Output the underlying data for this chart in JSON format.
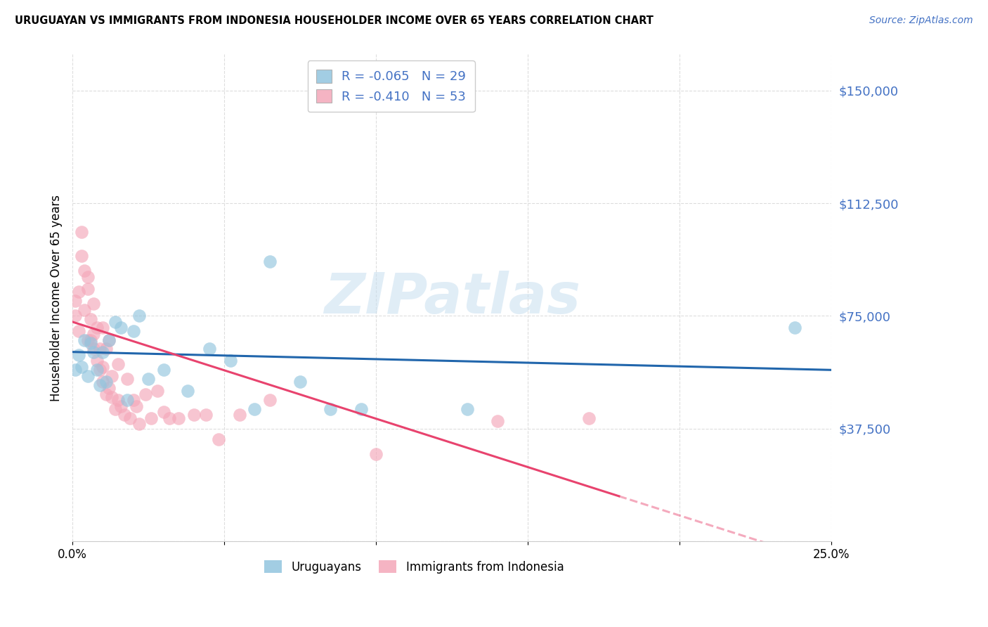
{
  "title": "URUGUAYAN VS IMMIGRANTS FROM INDONESIA HOUSEHOLDER INCOME OVER 65 YEARS CORRELATION CHART",
  "source": "Source: ZipAtlas.com",
  "ylabel": "Householder Income Over 65 years",
  "legend_uruguayan": "Uruguayans",
  "legend_indonesia": "Immigrants from Indonesia",
  "r_uruguayan": "-0.065",
  "n_uruguayan": "29",
  "r_indonesia": "-0.410",
  "n_indonesia": "53",
  "y_ticks": [
    0,
    37500,
    75000,
    112500,
    150000
  ],
  "y_tick_labels": [
    "",
    "$37,500",
    "$75,000",
    "$112,500",
    "$150,000"
  ],
  "xlim": [
    0.0,
    0.25
  ],
  "ylim": [
    0,
    162000
  ],
  "watermark": "ZIPatlas",
  "blue_color": "#92c5de",
  "pink_color": "#f4a7b9",
  "blue_line_color": "#2166ac",
  "pink_line_color": "#e8436e",
  "uruguayan_x": [
    0.001,
    0.002,
    0.003,
    0.004,
    0.005,
    0.006,
    0.007,
    0.008,
    0.009,
    0.01,
    0.011,
    0.012,
    0.014,
    0.016,
    0.018,
    0.02,
    0.022,
    0.025,
    0.03,
    0.038,
    0.045,
    0.052,
    0.06,
    0.065,
    0.075,
    0.085,
    0.095,
    0.13,
    0.238
  ],
  "uruguayan_y": [
    57000,
    62000,
    58000,
    67000,
    55000,
    66000,
    63000,
    57000,
    52000,
    63000,
    53000,
    67000,
    73000,
    71000,
    47000,
    70000,
    75000,
    54000,
    57000,
    50000,
    64000,
    60000,
    44000,
    93000,
    53000,
    44000,
    44000,
    44000,
    71000
  ],
  "indonesia_x": [
    0.001,
    0.001,
    0.002,
    0.002,
    0.003,
    0.003,
    0.004,
    0.004,
    0.005,
    0.005,
    0.005,
    0.006,
    0.006,
    0.007,
    0.007,
    0.007,
    0.008,
    0.008,
    0.009,
    0.009,
    0.01,
    0.01,
    0.01,
    0.011,
    0.011,
    0.012,
    0.012,
    0.013,
    0.013,
    0.014,
    0.015,
    0.015,
    0.016,
    0.017,
    0.018,
    0.019,
    0.02,
    0.021,
    0.022,
    0.024,
    0.026,
    0.028,
    0.03,
    0.032,
    0.035,
    0.04,
    0.044,
    0.048,
    0.055,
    0.065,
    0.1,
    0.14,
    0.17
  ],
  "indonesia_y": [
    75000,
    80000,
    70000,
    83000,
    95000,
    103000,
    90000,
    77000,
    84000,
    67000,
    88000,
    74000,
    67000,
    79000,
    64000,
    69000,
    60000,
    71000,
    64000,
    57000,
    71000,
    58000,
    53000,
    64000,
    49000,
    67000,
    51000,
    55000,
    48000,
    44000,
    59000,
    47000,
    45000,
    42000,
    54000,
    41000,
    47000,
    45000,
    39000,
    49000,
    41000,
    50000,
    43000,
    41000,
    41000,
    42000,
    42000,
    34000,
    42000,
    47000,
    29000,
    40000,
    41000
  ]
}
